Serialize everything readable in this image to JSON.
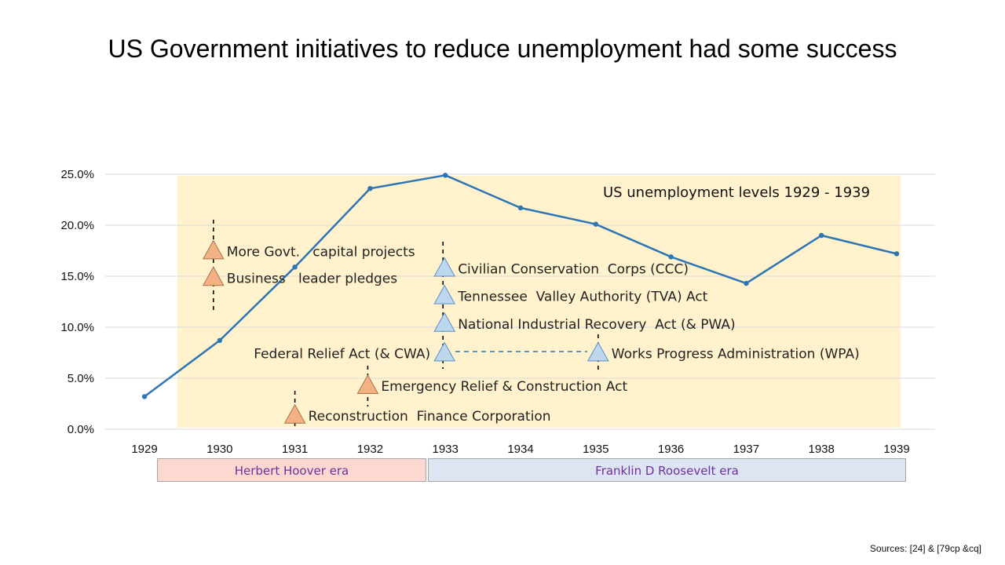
{
  "slide": {
    "title": "US Government initiatives to reduce unemployment had some success",
    "sources": "Sources: [24] & [79cp &cq]"
  },
  "colors": {
    "line": "#2e75b6",
    "highlight_band": "#fff2cc",
    "hoover_marker": "#f4b183",
    "roosevelt_marker": "#bdd7ee",
    "hoover_era_fill": "#fbd9d0",
    "roosevelt_era_fill": "#dde5f2"
  },
  "chart_data": {
    "type": "line",
    "title": "US unemployment levels 1929 - 1939",
    "x": [
      "1929",
      "1930",
      "1931",
      "1932",
      "1933",
      "1934",
      "1935",
      "1936",
      "1937",
      "1938",
      "1939"
    ],
    "values": [
      3.2,
      8.7,
      15.9,
      23.6,
      24.9,
      21.7,
      20.1,
      16.9,
      14.3,
      19.0,
      17.2
    ],
    "yunit": "%",
    "ylim": [
      0,
      25
    ],
    "yticks": [
      "0.0%",
      "5.0%",
      "10.0%",
      "15.0%",
      "20.0%",
      "25.0%"
    ],
    "grid": true,
    "annotations": [
      {
        "label": "More Govt.   capital projects",
        "year": "1930",
        "value": 17.5,
        "era": "hoover"
      },
      {
        "label": "Business   leader pledges",
        "year": "1930",
        "value": 14.9,
        "era": "hoover"
      },
      {
        "label": "Reconstruction  Finance Corporation",
        "year": "1931",
        "value": 1.4,
        "era": "hoover"
      },
      {
        "label": "Emergency Relief & Construction Act",
        "year": "1932",
        "value": 4.3,
        "era": "hoover"
      },
      {
        "label": "Civilian Conservation  Corps (CCC)",
        "year": "1933",
        "value": 15.8,
        "era": "roosevelt"
      },
      {
        "label": "Tennessee  Valley Authority (TVA) Act",
        "year": "1933",
        "value": 13.1,
        "era": "roosevelt"
      },
      {
        "label": "National Industrial Recovery  Act (& PWA)",
        "year": "1933",
        "value": 10.4,
        "era": "roosevelt"
      },
      {
        "label": "Federal Relief Act (& CWA)",
        "year": "1933",
        "value": 7.5,
        "era": "roosevelt"
      },
      {
        "label": "Works Progress Administration (WPA)",
        "year": "1935",
        "value": 7.5,
        "era": "roosevelt"
      }
    ],
    "eras": [
      {
        "label": "Herbert Hoover era",
        "from": "1929",
        "to": "1932"
      },
      {
        "label": "Franklin D Roosevelt era",
        "from": "1933",
        "to": "1939"
      }
    ]
  }
}
